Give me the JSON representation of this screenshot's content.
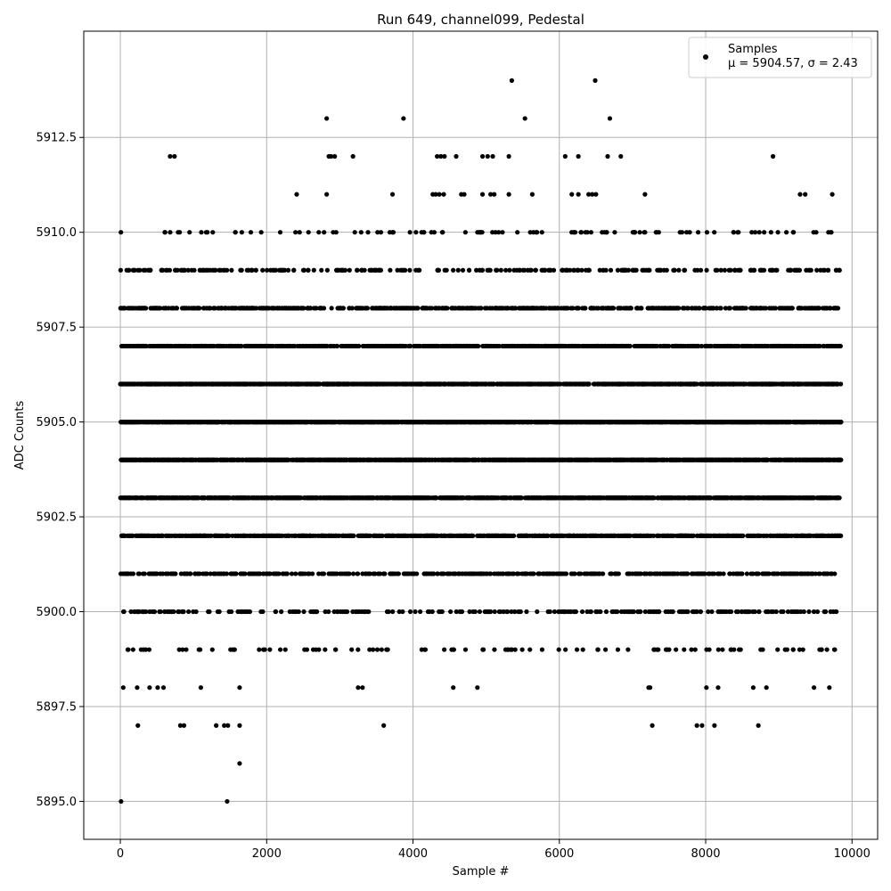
{
  "chart_data": {
    "type": "scatter",
    "title": "Run 649, channel099, Pedestal",
    "xlabel": "Sample #",
    "ylabel": "ADC Counts",
    "xlim": [
      -500,
      10350
    ],
    "ylim": [
      5894.0,
      5915.3
    ],
    "xticks": [
      0,
      2000,
      4000,
      6000,
      8000,
      10000
    ],
    "xtick_labels": [
      "0",
      "2000",
      "4000",
      "6000",
      "8000",
      "10000"
    ],
    "yticks": [
      5895.0,
      5897.5,
      5900.0,
      5902.5,
      5905.0,
      5907.5,
      5910.0,
      5912.5
    ],
    "ytick_labels": [
      "5895.0",
      "5897.5",
      "5900.0",
      "5902.5",
      "5905.0",
      "5907.5",
      "5910.0",
      "5912.5"
    ],
    "grid": true,
    "marker_color": "#000000",
    "legend": {
      "placement": "top-right",
      "label": "Samples",
      "stats": "μ = 5904.57, σ = 2.43"
    },
    "sample_count": 9850,
    "series": [
      {
        "y_levels": [
          5895,
          5896,
          5897,
          5898,
          5899,
          5900,
          5901,
          5902,
          5903,
          5904,
          5905,
          5906,
          5907,
          5908,
          5909,
          5910,
          5911,
          5912,
          5913,
          5914
        ],
        "level_probabilities": [
          0.0003,
          0.0002,
          0.0012,
          0.0025,
          0.01,
          0.025,
          0.055,
          0.095,
          0.13,
          0.16,
          0.17,
          0.15,
          0.1,
          0.06,
          0.025,
          0.012,
          0.004,
          0.0018,
          0.0005,
          0.0003
        ],
        "x_range": [
          0,
          9850
        ]
      }
    ],
    "sparse_points": [
      {
        "x": 10,
        "y": 5895
      },
      {
        "x": 1460,
        "y": 5895
      },
      {
        "x": 1630,
        "y": 5896
      },
      {
        "x": 240,
        "y": 5897
      },
      {
        "x": 820,
        "y": 5897
      },
      {
        "x": 870,
        "y": 5897
      },
      {
        "x": 1310,
        "y": 5897
      },
      {
        "x": 1420,
        "y": 5897
      },
      {
        "x": 1470,
        "y": 5897
      },
      {
        "x": 1630,
        "y": 5897
      },
      {
        "x": 3600,
        "y": 5897
      },
      {
        "x": 7270,
        "y": 5897
      },
      {
        "x": 7880,
        "y": 5897
      },
      {
        "x": 7950,
        "y": 5897
      },
      {
        "x": 8120,
        "y": 5897
      },
      {
        "x": 8720,
        "y": 5897
      },
      {
        "x": 40,
        "y": 5898
      },
      {
        "x": 230,
        "y": 5898
      },
      {
        "x": 400,
        "y": 5898
      },
      {
        "x": 510,
        "y": 5898
      },
      {
        "x": 590,
        "y": 5898
      },
      {
        "x": 1100,
        "y": 5898
      },
      {
        "x": 1630,
        "y": 5898
      },
      {
        "x": 3250,
        "y": 5898
      },
      {
        "x": 3310,
        "y": 5898
      },
      {
        "x": 4550,
        "y": 5898
      },
      {
        "x": 4880,
        "y": 5898
      },
      {
        "x": 7220,
        "y": 5898
      },
      {
        "x": 7240,
        "y": 5898
      },
      {
        "x": 8010,
        "y": 5898
      },
      {
        "x": 8170,
        "y": 5898
      },
      {
        "x": 8650,
        "y": 5898
      },
      {
        "x": 8830,
        "y": 5898
      },
      {
        "x": 9480,
        "y": 5898
      },
      {
        "x": 9690,
        "y": 5898
      },
      {
        "x": 2820,
        "y": 5913
      },
      {
        "x": 3870,
        "y": 5913
      },
      {
        "x": 5530,
        "y": 5913
      },
      {
        "x": 6690,
        "y": 5913
      },
      {
        "x": 5350,
        "y": 5914
      },
      {
        "x": 6490,
        "y": 5914
      },
      {
        "x": 680,
        "y": 5912
      },
      {
        "x": 740,
        "y": 5912
      },
      {
        "x": 2850,
        "y": 5912
      },
      {
        "x": 2880,
        "y": 5912
      },
      {
        "x": 2930,
        "y": 5912
      },
      {
        "x": 3180,
        "y": 5912
      },
      {
        "x": 4330,
        "y": 5912
      },
      {
        "x": 4380,
        "y": 5912
      },
      {
        "x": 4430,
        "y": 5912
      },
      {
        "x": 4590,
        "y": 5912
      },
      {
        "x": 4950,
        "y": 5912
      },
      {
        "x": 5020,
        "y": 5912
      },
      {
        "x": 5090,
        "y": 5912
      },
      {
        "x": 5310,
        "y": 5912
      },
      {
        "x": 6080,
        "y": 5912
      },
      {
        "x": 6260,
        "y": 5912
      },
      {
        "x": 6660,
        "y": 5912
      },
      {
        "x": 6840,
        "y": 5912
      },
      {
        "x": 8920,
        "y": 5912
      },
      {
        "x": 2410,
        "y": 5911
      },
      {
        "x": 2820,
        "y": 5911
      },
      {
        "x": 3720,
        "y": 5911
      },
      {
        "x": 4270,
        "y": 5911
      },
      {
        "x": 4310,
        "y": 5911
      },
      {
        "x": 4360,
        "y": 5911
      },
      {
        "x": 4420,
        "y": 5911
      },
      {
        "x": 4660,
        "y": 5911
      },
      {
        "x": 4700,
        "y": 5911
      },
      {
        "x": 4950,
        "y": 5911
      },
      {
        "x": 5060,
        "y": 5911
      },
      {
        "x": 5110,
        "y": 5911
      },
      {
        "x": 5310,
        "y": 5911
      },
      {
        "x": 5630,
        "y": 5911
      },
      {
        "x": 6170,
        "y": 5911
      },
      {
        "x": 6260,
        "y": 5911
      },
      {
        "x": 6400,
        "y": 5911
      },
      {
        "x": 6450,
        "y": 5911
      },
      {
        "x": 6500,
        "y": 5911
      },
      {
        "x": 7170,
        "y": 5911
      },
      {
        "x": 9290,
        "y": 5911
      },
      {
        "x": 9360,
        "y": 5911
      },
      {
        "x": 9730,
        "y": 5911
      }
    ]
  }
}
